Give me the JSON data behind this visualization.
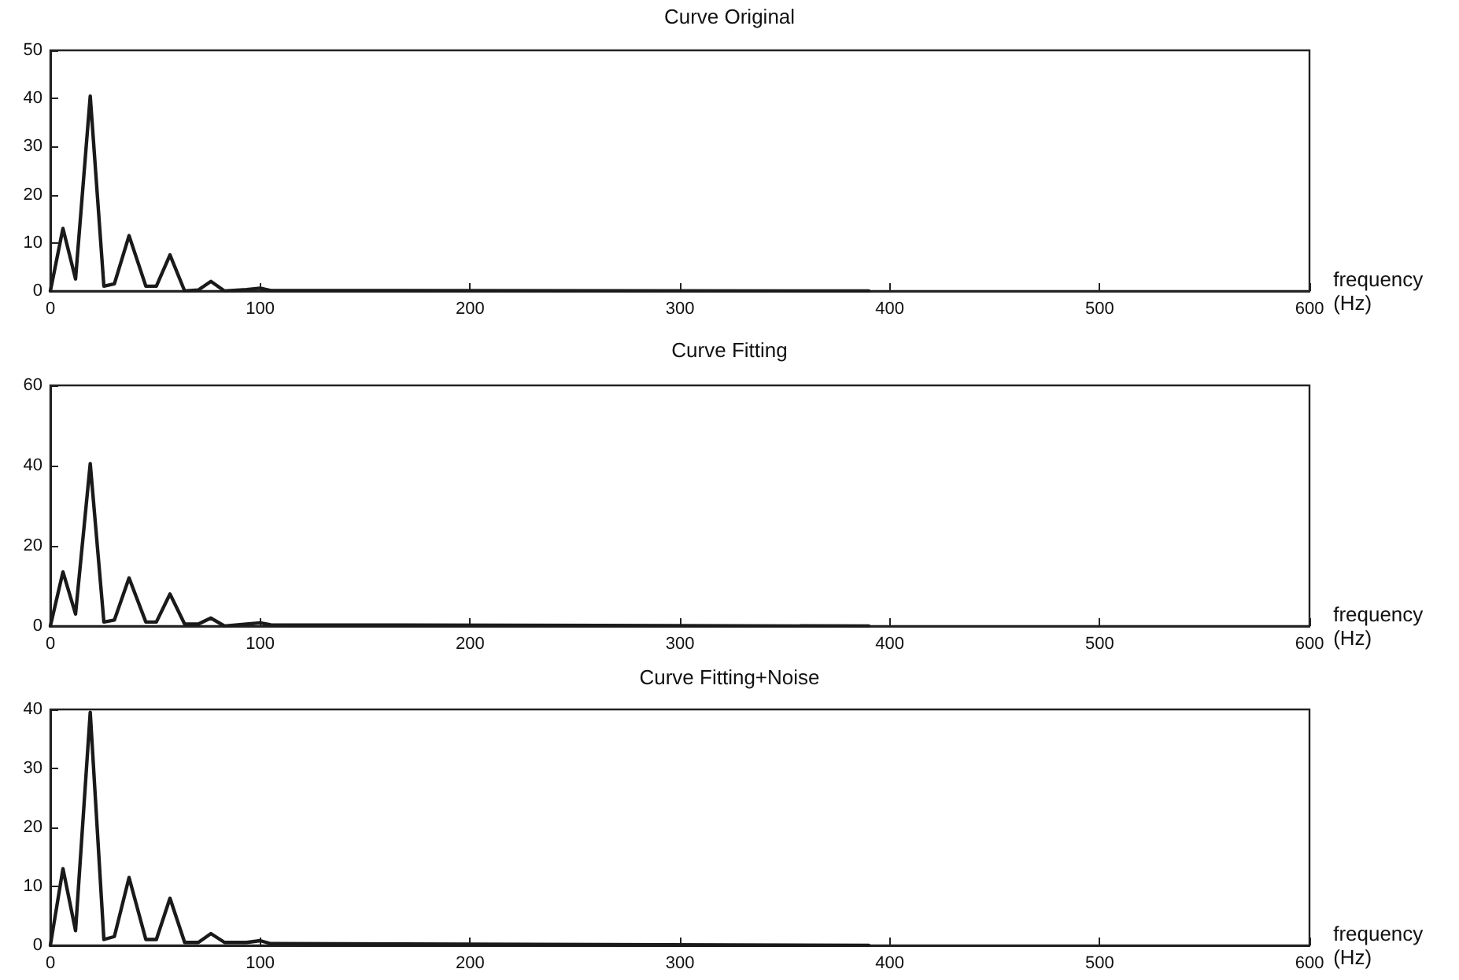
{
  "chart_data": [
    {
      "type": "line",
      "title": "Curve Original",
      "xlabel": "frequency\n(Hz)",
      "x": [
        0,
        6,
        12,
        19,
        25.5,
        30.5,
        37.5,
        45.5,
        50.5,
        57,
        64,
        70.5,
        76.5,
        83,
        93.5,
        100,
        105,
        390
      ],
      "values": [
        0,
        13,
        2.5,
        40.5,
        1,
        1.5,
        11.5,
        1,
        1,
        7.5,
        0,
        0.2,
        2,
        0,
        0.3,
        0.6,
        0.1,
        0
      ],
      "color": "#1a1a1a",
      "xlim": [
        0,
        600
      ],
      "xticks": [
        0,
        100,
        200,
        300,
        400,
        500,
        600
      ],
      "ylim": [
        0,
        50
      ],
      "yticks": [
        0,
        10,
        20,
        30,
        40,
        50
      ],
      "grid": false,
      "marker": "none",
      "line_style": "solid"
    },
    {
      "type": "line",
      "title": "Curve Fitting",
      "xlabel": "frequency\n(Hz)",
      "x": [
        0,
        6,
        12,
        19,
        25.5,
        30.5,
        37.5,
        45.5,
        50.5,
        57,
        64,
        70.5,
        76.5,
        83,
        93.5,
        100,
        105,
        390
      ],
      "values": [
        0,
        13.5,
        3,
        40.5,
        1,
        1.5,
        12,
        1,
        1,
        8,
        0.5,
        0.5,
        2,
        0,
        0.5,
        0.8,
        0.3,
        0
      ],
      "color": "#1a1a1a",
      "xlim": [
        0,
        600
      ],
      "xticks": [
        0,
        100,
        200,
        300,
        400,
        500,
        600
      ],
      "ylim": [
        0,
        60
      ],
      "yticks": [
        0,
        20,
        40,
        60
      ],
      "grid": false,
      "marker": "none",
      "line_style": "solid"
    },
    {
      "type": "line",
      "title": "Curve Fitting+Noise",
      "xlabel": "frequency\n(Hz)",
      "x": [
        0,
        6,
        12,
        19,
        25.5,
        30.5,
        37.5,
        45.5,
        50.5,
        57,
        64,
        70.5,
        76.5,
        83,
        93.5,
        100,
        105,
        390
      ],
      "values": [
        0,
        13,
        2.5,
        39.5,
        1,
        1.5,
        11.5,
        1,
        1,
        8,
        0.5,
        0.5,
        2,
        0.5,
        0.5,
        0.8,
        0.3,
        0
      ],
      "color": "#1a1a1a",
      "xlim": [
        0,
        600
      ],
      "xticks": [
        0,
        100,
        200,
        300,
        400,
        500,
        600
      ],
      "ylim": [
        0,
        40
      ],
      "yticks": [
        0,
        10,
        20,
        30,
        40
      ],
      "grid": false,
      "marker": "none",
      "line_style": "solid"
    }
  ]
}
